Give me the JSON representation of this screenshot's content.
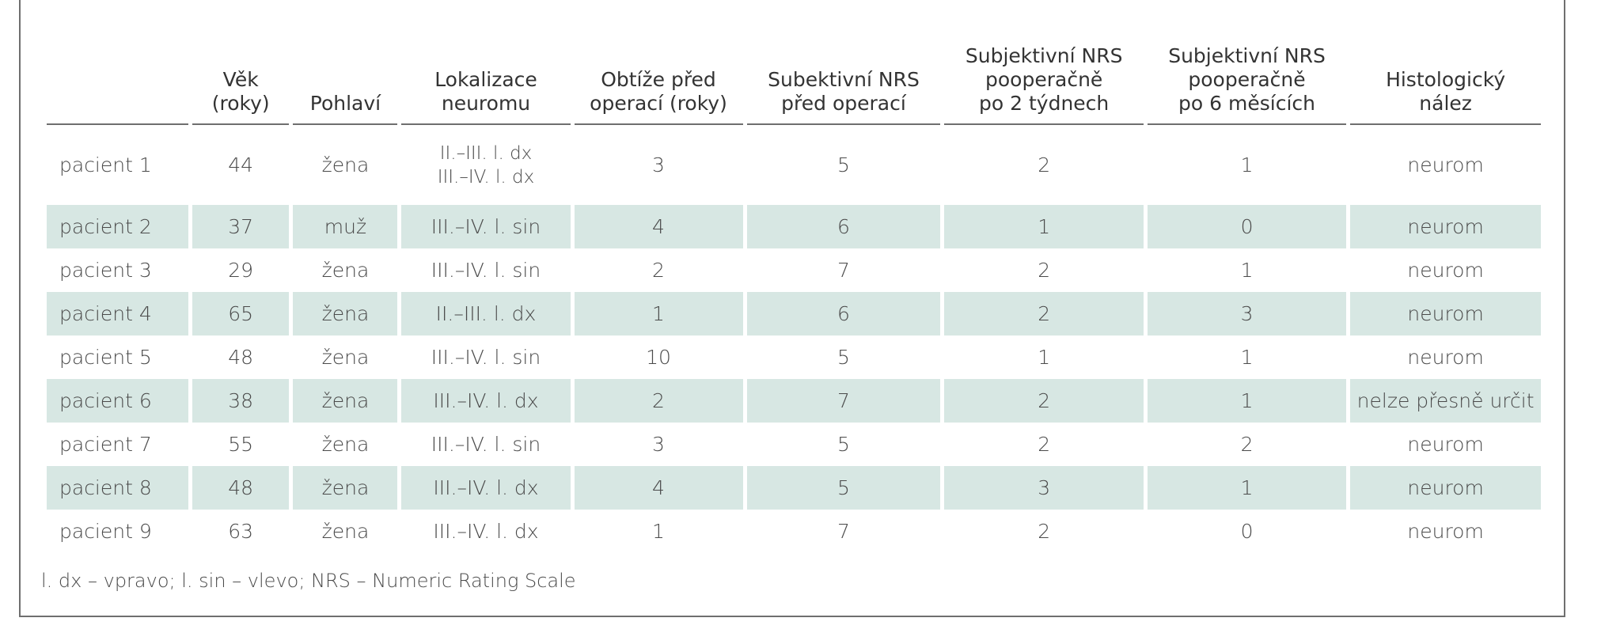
{
  "table": {
    "headers": [
      "",
      "Věk\n(roky)",
      "Pohlaví",
      "Lokalizace\nneuromu",
      "Obtíže před\noperací (roky)",
      "Subektivní NRS\npřed operací",
      "Subjektivní NRS\npooperačně\npo 2 týdnech",
      "Subjektivní NRS\npooperačně\npo 6 měsících",
      "Histologický\nnález"
    ],
    "rows": [
      {
        "patient": "pacient 1",
        "age": "44",
        "sex": "žena",
        "location": [
          "II.–III. l. dx",
          "III.–IV. l. dx"
        ],
        "duration": "3",
        "nrs_pre": "5",
        "nrs_2w": "2",
        "nrs_6m": "1",
        "histology": "neurom",
        "striped": false
      },
      {
        "patient": "pacient 2",
        "age": "37",
        "sex": "muž",
        "location": [
          "III.–IV. l. sin"
        ],
        "duration": "4",
        "nrs_pre": "6",
        "nrs_2w": "1",
        "nrs_6m": "0",
        "histology": "neurom",
        "striped": true
      },
      {
        "patient": "pacient 3",
        "age": "29",
        "sex": "žena",
        "location": [
          "III.–IV. l. sin"
        ],
        "duration": "2",
        "nrs_pre": "7",
        "nrs_2w": "2",
        "nrs_6m": "1",
        "histology": "neurom",
        "striped": false
      },
      {
        "patient": "pacient 4",
        "age": "65",
        "sex": "žena",
        "location": [
          "II.–III.  l. dx"
        ],
        "duration": "1",
        "nrs_pre": "6",
        "nrs_2w": "2",
        "nrs_6m": "3",
        "histology": "neurom",
        "striped": true
      },
      {
        "patient": "pacient 5",
        "age": "48",
        "sex": "žena",
        "location": [
          "III.–IV. l. sin"
        ],
        "duration": "10",
        "nrs_pre": "5",
        "nrs_2w": "1",
        "nrs_6m": "1",
        "histology": "neurom",
        "striped": false
      },
      {
        "patient": "pacient 6",
        "age": "38",
        "sex": "žena",
        "location": [
          "III.–IV. l. dx"
        ],
        "duration": "2",
        "nrs_pre": "7",
        "nrs_2w": "2",
        "nrs_6m": "1",
        "histology": "nelze přesně určit",
        "striped": true
      },
      {
        "patient": "pacient 7",
        "age": "55",
        "sex": "žena",
        "location": [
          "III.–IV. l. sin"
        ],
        "duration": "3",
        "nrs_pre": "5",
        "nrs_2w": "2",
        "nrs_6m": "2",
        "histology": "neurom",
        "striped": false
      },
      {
        "patient": "pacient 8",
        "age": "48",
        "sex": "žena",
        "location": [
          "III.–IV. l. dx"
        ],
        "duration": "4",
        "nrs_pre": "5",
        "nrs_2w": "3",
        "nrs_6m": "1",
        "histology": "neurom",
        "striped": true
      },
      {
        "patient": "pacient 9",
        "age": "63",
        "sex": "žena",
        "location": [
          "III.–IV. l. dx"
        ],
        "duration": "1",
        "nrs_pre": "7",
        "nrs_2w": "2",
        "nrs_6m": "0",
        "histology": "neurom",
        "striped": false
      }
    ],
    "stripe_color": "#d7e7e3",
    "rule_color": "#6f6f6f"
  },
  "footnote": "l. dx – vpravo; l. sin – vlevo; NRS – Numeric Rating Scale"
}
